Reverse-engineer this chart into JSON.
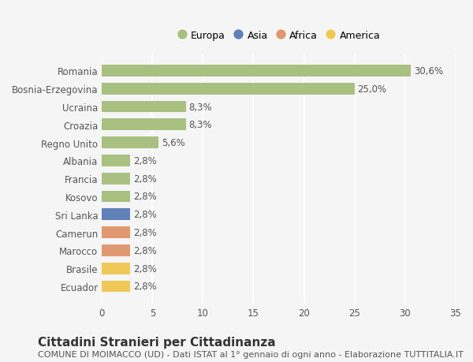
{
  "categories": [
    "Romania",
    "Bosnia-Erzegovina",
    "Ucraina",
    "Croazia",
    "Regno Unito",
    "Albania",
    "Francia",
    "Kosovo",
    "Sri Lanka",
    "Camerun",
    "Marocco",
    "Brasile",
    "Ecuador"
  ],
  "values": [
    30.6,
    25.0,
    8.3,
    8.3,
    5.6,
    2.8,
    2.8,
    2.8,
    2.8,
    2.8,
    2.8,
    2.8,
    2.8
  ],
  "labels": [
    "30,6%",
    "25,0%",
    "8,3%",
    "8,3%",
    "5,6%",
    "2,8%",
    "2,8%",
    "2,8%",
    "2,8%",
    "2,8%",
    "2,8%",
    "2,8%",
    "2,8%"
  ],
  "colors": [
    "#a8c080",
    "#a8c080",
    "#a8c080",
    "#a8c080",
    "#a8c080",
    "#a8c080",
    "#a8c080",
    "#a8c080",
    "#6080b8",
    "#e09870",
    "#e09870",
    "#f0c858",
    "#f0c858"
  ],
  "legend_labels": [
    "Europa",
    "Asia",
    "Africa",
    "America"
  ],
  "legend_colors": [
    "#a8c080",
    "#6080b8",
    "#e09870",
    "#f0c858"
  ],
  "title": "Cittadini Stranieri per Cittadinanza",
  "subtitle": "COMUNE DI MOIMACCO (UD) - Dati ISTAT al 1° gennaio di ogni anno - Elaborazione TUTTITALIA.IT",
  "xlim": [
    0,
    35
  ],
  "xticks": [
    0,
    5,
    10,
    15,
    20,
    25,
    30,
    35
  ],
  "background_color": "#f5f5f5",
  "bar_height": 0.65,
  "grid_color": "#ffffff",
  "title_fontsize": 11,
  "subtitle_fontsize": 8,
  "label_fontsize": 8.5,
  "tick_fontsize": 8.5
}
